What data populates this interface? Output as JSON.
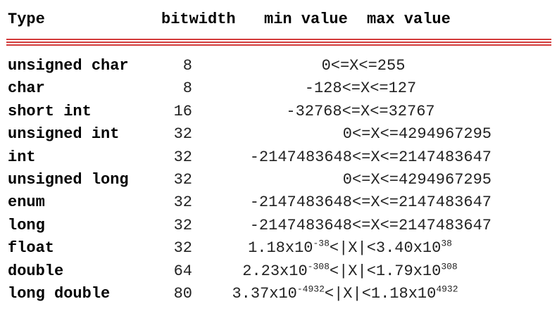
{
  "header": {
    "type": "Type",
    "bitwidth": "bitwidth",
    "min_value": "min value",
    "max_value": "max value"
  },
  "rule_color": "#d23c3c",
  "rows": [
    {
      "type": "unsigned char",
      "bitwidth": "8",
      "range": "0<=X<=255"
    },
    {
      "type": "char",
      "bitwidth": "8",
      "range": "-128<=X<=127"
    },
    {
      "type": "short int",
      "bitwidth": "16",
      "range": "-32768<=X<=32767"
    },
    {
      "type": "unsigned int",
      "bitwidth": "32",
      "range": "0<=X<=4294967295"
    },
    {
      "type": "int",
      "bitwidth": "32",
      "range": "-2147483648<=X<=2147483647"
    },
    {
      "type": "unsigned long",
      "bitwidth": "32",
      "range": "0<=X<=4294967295"
    },
    {
      "type": "enum",
      "bitwidth": "32",
      "range": "-2147483648<=X<=2147483647"
    },
    {
      "type": "long",
      "bitwidth": "32",
      "range": "-2147483648<=X<=2147483647"
    },
    {
      "type": "float",
      "bitwidth": "32",
      "range_parts": {
        "a": "1.18x10",
        "a_exp": "-38",
        "mid": "<|X|<3.40x10",
        "b_exp": "38"
      }
    },
    {
      "type": "double",
      "bitwidth": "64",
      "range_parts": {
        "a": "2.23x10",
        "a_exp": "-308",
        "mid": "<|X|<1.79x10",
        "b_exp": "308"
      }
    },
    {
      "type": "long double",
      "bitwidth": "80",
      "range_parts": {
        "a": "3.37x10",
        "a_exp": "-4932",
        "mid": "<|X|<1.18x10",
        "b_exp": "4932"
      }
    }
  ]
}
